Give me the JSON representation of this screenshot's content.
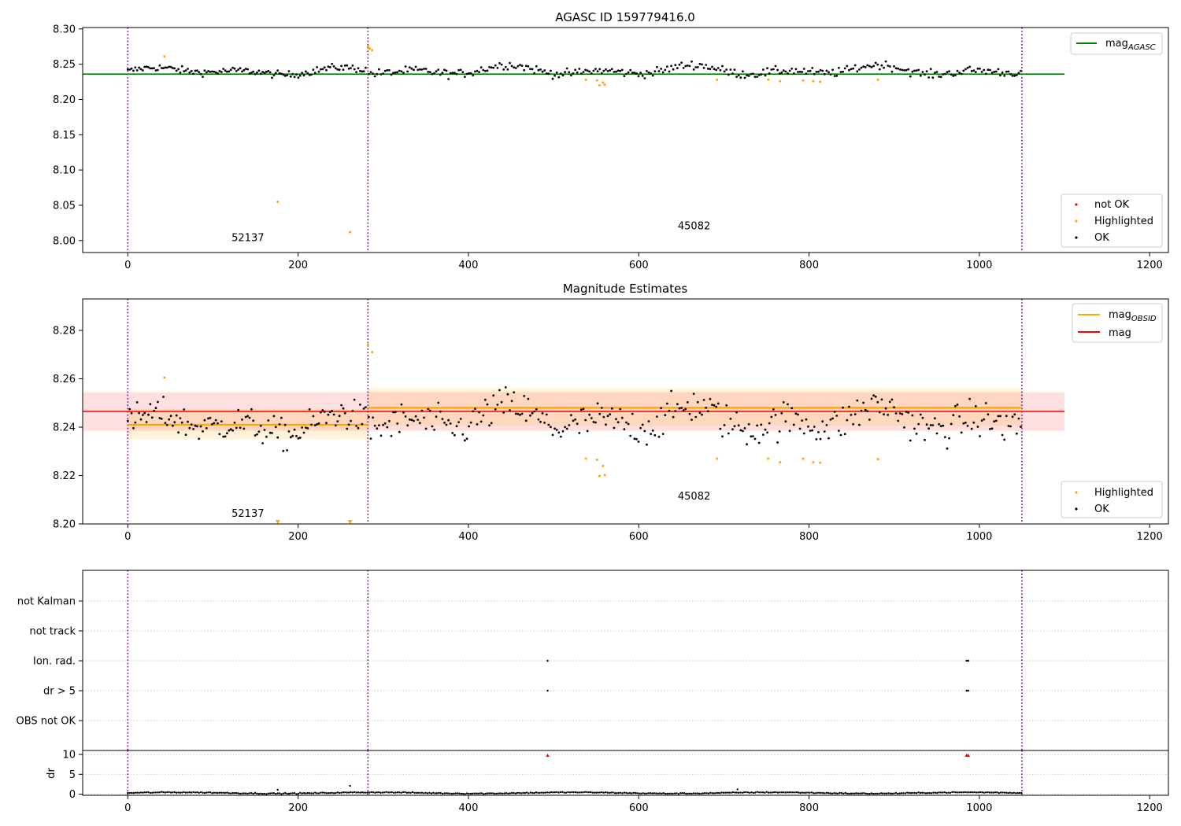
{
  "figure": {
    "background": "#ffffff"
  },
  "chart_data": [
    {
      "type": "scatter",
      "title": "AGASC ID 159779416.0",
      "xlim": [
        -53,
        1222
      ],
      "ylim": [
        7.983,
        8.302
      ],
      "xticks": [
        0,
        200,
        400,
        600,
        800,
        1000,
        1200
      ],
      "yticks": [
        "8.00",
        "8.05",
        "8.10",
        "8.15",
        "8.20",
        "8.25",
        "8.30"
      ],
      "obs_boundaries": [
        0,
        282,
        1050
      ],
      "obs_labels": [
        {
          "text": "52137",
          "x": 141,
          "y": 7.999
        },
        {
          "text": "45082",
          "x": 665,
          "y": 8.016
        }
      ],
      "lines": [
        {
          "label": "mag_AGASC",
          "label_main": "mag",
          "label_sub": "AGASC",
          "color": "#008000",
          "y": 8.236,
          "x_range": [
            -53,
            1100
          ]
        }
      ],
      "series_legend": [
        {
          "name": "not OK",
          "color": "#ff0000"
        },
        {
          "name": "Highlighted",
          "color": "#ffa500"
        },
        {
          "name": "OK",
          "color": "#000000"
        }
      ],
      "ok_points": {
        "color": "#000000",
        "segments": [
          {
            "x0": 0,
            "x1": 281,
            "step": 2.2,
            "center": 8.24,
            "amp": 0.006,
            "noise": 0.005
          },
          {
            "x0": 283,
            "x1": 1050,
            "step": 2.4,
            "center": 8.241,
            "amp": 0.008,
            "noise": 0.006
          }
        ]
      },
      "highlighted_points": [
        {
          "x": 43,
          "y": 8.261
        },
        {
          "x": 176,
          "y": 8.055
        },
        {
          "x": 261,
          "y": 8.012
        },
        {
          "x": 282,
          "y": 8.275
        },
        {
          "x": 284,
          "y": 8.272
        },
        {
          "x": 287,
          "y": 8.27
        },
        {
          "x": 538,
          "y": 8.228
        },
        {
          "x": 551,
          "y": 8.227
        },
        {
          "x": 554,
          "y": 8.22
        },
        {
          "x": 558,
          "y": 8.224
        },
        {
          "x": 560,
          "y": 8.221
        },
        {
          "x": 692,
          "y": 8.228
        },
        {
          "x": 752,
          "y": 8.228
        },
        {
          "x": 766,
          "y": 8.226
        },
        {
          "x": 793,
          "y": 8.227
        },
        {
          "x": 805,
          "y": 8.226
        },
        {
          "x": 813,
          "y": 8.225
        },
        {
          "x": 881,
          "y": 8.228
        }
      ]
    },
    {
      "type": "scatter",
      "title": "Magnitude Estimates",
      "xlim": [
        -53,
        1222
      ],
      "ylim": [
        8.2,
        8.293
      ],
      "xticks": [
        0,
        200,
        400,
        600,
        800,
        1000,
        1200
      ],
      "yticks": [
        "8.20",
        "8.22",
        "8.24",
        "8.26",
        "8.28"
      ],
      "obs_boundaries": [
        0,
        282,
        1050
      ],
      "obs_labels": [
        {
          "text": "52137",
          "x": 141,
          "y": 8.203
        },
        {
          "text": "45082",
          "x": 665,
          "y": 8.21
        }
      ],
      "bands": [
        {
          "x_range": [
            -53,
            1100
          ],
          "y_range": [
            8.2385,
            8.2545
          ],
          "color": "#ff0000",
          "opacity": 0.12
        },
        {
          "x_range": [
            0,
            282
          ],
          "y_range": [
            8.235,
            8.2475
          ],
          "color": "#ffa500",
          "opacity": 0.15
        },
        {
          "x_range": [
            282,
            1050
          ],
          "y_range": [
            8.2405,
            8.256
          ],
          "color": "#ffa500",
          "opacity": 0.15
        }
      ],
      "lines": [
        {
          "label": "mag_OBSID",
          "label_main": "mag",
          "label_sub": "OBSID",
          "color": "#ffa500",
          "segments": [
            {
              "x_range": [
                0,
                282
              ],
              "y": 8.241
            },
            {
              "x_range": [
                282,
                1050
              ],
              "y": 8.248
            }
          ]
        },
        {
          "label": "mag",
          "label_main": "mag",
          "label_sub": "",
          "color": "#ff0000",
          "segments": [
            {
              "x_range": [
                -53,
                1100
              ],
              "y": 8.2465
            }
          ]
        }
      ],
      "series_legend": [
        {
          "name": "Highlighted",
          "color": "#ffa500"
        },
        {
          "name": "OK",
          "color": "#000000"
        }
      ],
      "ok_points": {
        "color": "#000000",
        "segments": [
          {
            "x0": 0,
            "x1": 281,
            "step": 2.2,
            "center": 8.241,
            "amp": 0.005,
            "noise": 0.0065
          },
          {
            "x0": 283,
            "x1": 1050,
            "step": 2.4,
            "center": 8.243,
            "amp": 0.006,
            "noise": 0.0075
          }
        ]
      },
      "highlighted_points": [
        {
          "x": 43,
          "y": 8.2605
        },
        {
          "x": 282,
          "y": 8.274
        },
        {
          "x": 287,
          "y": 8.271
        },
        {
          "x": 538,
          "y": 8.227
        },
        {
          "x": 551,
          "y": 8.2265
        },
        {
          "x": 554,
          "y": 8.2198
        },
        {
          "x": 558,
          "y": 8.224
        },
        {
          "x": 560,
          "y": 8.2202
        },
        {
          "x": 692,
          "y": 8.227
        },
        {
          "x": 752,
          "y": 8.227
        },
        {
          "x": 766,
          "y": 8.2255
        },
        {
          "x": 793,
          "y": 8.227
        },
        {
          "x": 805,
          "y": 8.2255
        },
        {
          "x": 813,
          "y": 8.2253
        },
        {
          "x": 881,
          "y": 8.2268
        }
      ],
      "out_of_range_markers": [
        {
          "x": 176
        },
        {
          "x": 261
        }
      ]
    },
    {
      "type": "scatter",
      "title": "",
      "xlim": [
        -53,
        1222
      ],
      "categories": [
        "not Kalman",
        "not track",
        "Ion. rad.",
        "dr > 5",
        "OBS not OK"
      ],
      "obs_boundaries": [
        0,
        282,
        1050
      ],
      "points": [
        {
          "category": "Ion. rad.",
          "x": 493
        },
        {
          "category": "Ion. rad.",
          "x": 985
        },
        {
          "category": "Ion. rad.",
          "x": 987
        },
        {
          "category": "dr > 5",
          "x": 493
        },
        {
          "category": "dr > 5",
          "x": 985
        },
        {
          "category": "dr > 5",
          "x": 987
        }
      ]
    },
    {
      "type": "scatter",
      "title": "",
      "ylabel": "dr",
      "xlim": [
        -53,
        1222
      ],
      "ylim": [
        -0.3,
        11
      ],
      "xticks": [
        0,
        200,
        400,
        600,
        800,
        1000,
        1200
      ],
      "yticks": [
        0,
        5,
        10
      ],
      "obs_boundaries": [
        0,
        282,
        1050
      ],
      "ok_points": {
        "color": "#000000",
        "x0": 0,
        "x1": 1050,
        "step": 2.2,
        "center": 0.3,
        "noise": 0.25
      },
      "extra_points": [
        {
          "x": 176,
          "y": 1.1
        },
        {
          "x": 261,
          "y": 2.1
        },
        {
          "x": 716,
          "y": 1.2
        }
      ],
      "flagged_points": [
        {
          "x": 493,
          "y": 9.8
        },
        {
          "x": 985,
          "y": 9.8
        },
        {
          "x": 987,
          "y": 9.8
        }
      ],
      "flagged_color": "#ff0000"
    }
  ]
}
